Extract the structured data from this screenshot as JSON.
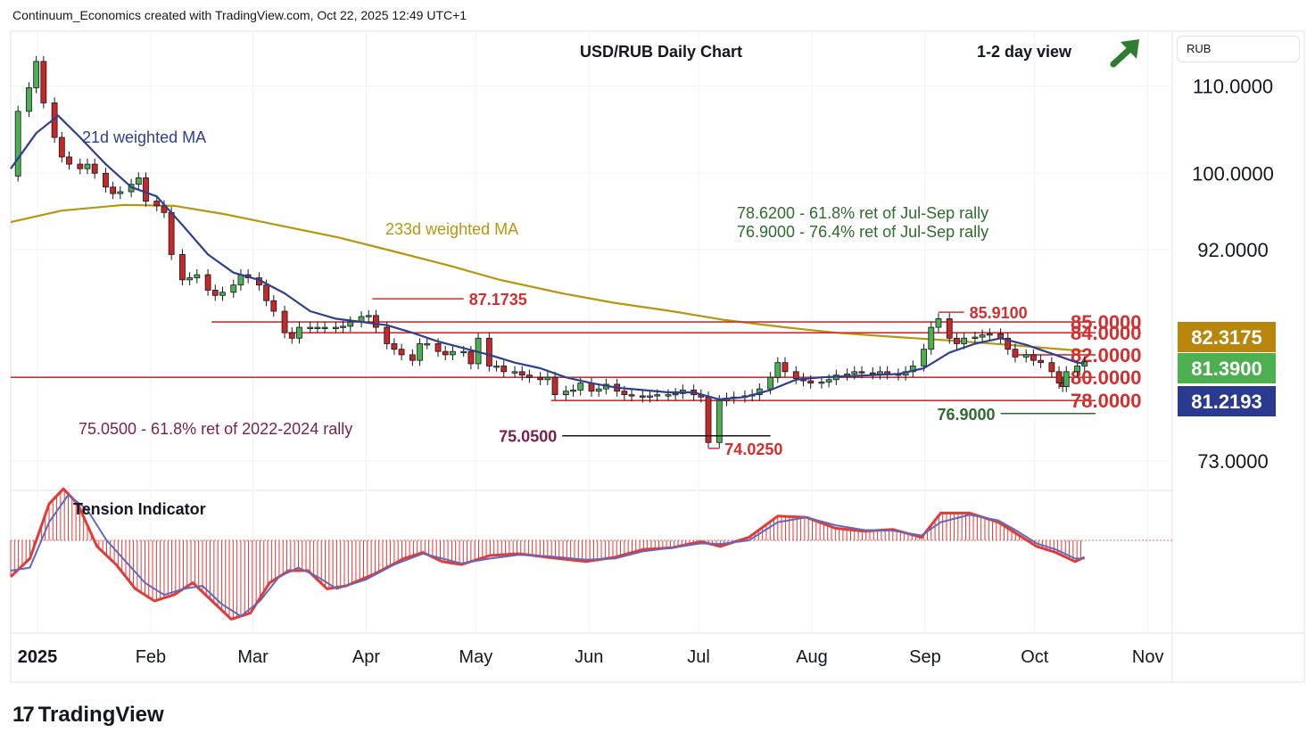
{
  "header": {
    "attribution": "Continuum_Economics created with TradingView.com, Oct 22, 2025 12:49 UTC+1"
  },
  "brand": {
    "logo_text": "17",
    "name": "TradingView"
  },
  "price_axis": {
    "currency": "RUB",
    "tick_labels": [
      "110.0000",
      "100.0000",
      "92.0000",
      "73.0000"
    ],
    "badges": [
      {
        "value": "82.3175",
        "color": "#b8860b"
      },
      {
        "value": "81.3900",
        "color": "#4caf50"
      },
      {
        "value": "81.2193",
        "color": "#2a3a8f"
      }
    ]
  },
  "time_axis": {
    "labels": [
      "2025",
      "Feb",
      "Mar",
      "Apr",
      "May",
      "Jun",
      "Jul",
      "Aug",
      "Sep",
      "Oct",
      "Nov"
    ]
  },
  "colors": {
    "candle_up": "#4caf50",
    "candle_down": "#c62828",
    "ma_short": "#2e3f8f",
    "ma_long": "#b8960c",
    "level_line": "#d32f2f",
    "text_green": "#2e6b2e",
    "text_maroon": "#7b1f4e",
    "tension_fast": "#e53935",
    "tension_slow": "#5c6bc0"
  },
  "chart_data": {
    "type": "line",
    "title": "USD/RUB Daily Chart",
    "view_label": "1-2 day view",
    "view_icon": "arrow-up-right-icon",
    "y_scale": "log",
    "ylim": [
      70.7,
      116.8
    ],
    "xlim": [
      "2025-01-01",
      "2025-11-15"
    ],
    "legend_labels": {
      "ma_short": "21d weighted MA",
      "ma_long": "233d weighted MA"
    },
    "ohlc_close": [
      [
        "2025-01-01",
        99.7
      ],
      [
        "2025-01-03",
        107.0
      ],
      [
        "2025-01-06",
        109.8
      ],
      [
        "2025-01-08",
        113.0
      ],
      [
        "2025-01-10",
        108.0
      ],
      [
        "2025-01-13",
        104.0
      ],
      [
        "2025-01-15",
        101.8
      ],
      [
        "2025-01-17",
        101.0
      ],
      [
        "2025-01-20",
        100.5
      ],
      [
        "2025-01-22",
        101.0
      ],
      [
        "2025-01-24",
        100.0
      ],
      [
        "2025-01-27",
        98.5
      ],
      [
        "2025-01-29",
        97.8
      ],
      [
        "2025-01-31",
        98.0
      ],
      [
        "2025-02-03",
        98.8
      ],
      [
        "2025-02-05",
        99.5
      ],
      [
        "2025-02-07",
        97.0
      ],
      [
        "2025-02-10",
        96.5
      ],
      [
        "2025-02-12",
        95.8
      ],
      [
        "2025-02-14",
        91.5
      ],
      [
        "2025-02-17",
        89.0
      ],
      [
        "2025-02-19",
        89.2
      ],
      [
        "2025-02-21",
        89.5
      ],
      [
        "2025-02-24",
        88.0
      ],
      [
        "2025-02-26",
        87.5
      ],
      [
        "2025-02-28",
        87.8
      ],
      [
        "2025-03-03",
        88.5
      ],
      [
        "2025-03-05",
        89.5
      ],
      [
        "2025-03-07",
        89.2
      ],
      [
        "2025-03-10",
        88.5
      ],
      [
        "2025-03-12",
        87.0
      ],
      [
        "2025-03-14",
        86.0
      ],
      [
        "2025-03-17",
        84.0
      ],
      [
        "2025-03-19",
        83.5
      ],
      [
        "2025-03-21",
        84.5
      ],
      [
        "2025-03-24",
        84.5
      ],
      [
        "2025-03-26",
        84.5
      ],
      [
        "2025-03-28",
        84.5
      ],
      [
        "2025-03-31",
        84.5
      ],
      [
        "2025-04-02",
        84.6
      ],
      [
        "2025-04-04",
        85.0
      ],
      [
        "2025-04-07",
        85.5
      ],
      [
        "2025-04-09",
        85.6
      ],
      [
        "2025-04-11",
        84.5
      ],
      [
        "2025-04-14",
        83.0
      ],
      [
        "2025-04-16",
        82.5
      ],
      [
        "2025-04-18",
        82.0
      ],
      [
        "2025-04-21",
        81.5
      ],
      [
        "2025-04-23",
        83.0
      ],
      [
        "2025-04-25",
        83.0
      ],
      [
        "2025-04-28",
        82.3
      ],
      [
        "2025-04-30",
        82.0
      ],
      [
        "2025-05-02",
        82.3
      ],
      [
        "2025-05-05",
        82.3
      ],
      [
        "2025-05-07",
        81.2
      ],
      [
        "2025-05-09",
        83.5
      ],
      [
        "2025-05-12",
        81.0
      ],
      [
        "2025-05-14",
        81.0
      ],
      [
        "2025-05-16",
        80.5
      ],
      [
        "2025-05-19",
        80.5
      ],
      [
        "2025-05-21",
        80.2
      ],
      [
        "2025-05-23",
        80.0
      ],
      [
        "2025-05-26",
        79.8
      ],
      [
        "2025-05-28",
        80.0
      ],
      [
        "2025-05-30",
        78.5
      ],
      [
        "2025-06-02",
        78.8
      ],
      [
        "2025-06-04",
        78.9
      ],
      [
        "2025-06-06",
        79.5
      ],
      [
        "2025-06-09",
        78.8
      ],
      [
        "2025-06-11",
        79.0
      ],
      [
        "2025-06-13",
        79.4
      ],
      [
        "2025-06-16",
        78.8
      ],
      [
        "2025-06-18",
        78.5
      ],
      [
        "2025-06-20",
        78.4
      ],
      [
        "2025-06-23",
        78.3
      ],
      [
        "2025-06-25",
        78.4
      ],
      [
        "2025-06-27",
        78.5
      ],
      [
        "2025-06-30",
        78.5
      ],
      [
        "2025-07-02",
        78.6
      ],
      [
        "2025-07-04",
        78.9
      ],
      [
        "2025-07-07",
        78.5
      ],
      [
        "2025-07-09",
        78.3
      ],
      [
        "2025-07-11",
        74.5
      ],
      [
        "2025-07-14",
        78.0
      ],
      [
        "2025-07-16",
        78.2
      ],
      [
        "2025-07-18",
        78.3
      ],
      [
        "2025-07-21",
        78.4
      ],
      [
        "2025-07-23",
        78.5
      ],
      [
        "2025-07-25",
        79.0
      ],
      [
        "2025-07-28",
        80.0
      ],
      [
        "2025-07-30",
        81.3
      ],
      [
        "2025-08-01",
        80.5
      ],
      [
        "2025-08-04",
        79.9
      ],
      [
        "2025-08-06",
        79.7
      ],
      [
        "2025-08-08",
        79.5
      ],
      [
        "2025-08-11",
        79.6
      ],
      [
        "2025-08-13",
        79.8
      ],
      [
        "2025-08-15",
        80.2
      ],
      [
        "2025-08-18",
        80.3
      ],
      [
        "2025-08-20",
        80.5
      ],
      [
        "2025-08-22",
        80.4
      ],
      [
        "2025-08-25",
        80.3
      ],
      [
        "2025-08-27",
        80.5
      ],
      [
        "2025-08-29",
        80.3
      ],
      [
        "2025-09-01",
        80.2
      ],
      [
        "2025-09-03",
        80.5
      ],
      [
        "2025-09-05",
        81.0
      ],
      [
        "2025-09-08",
        82.5
      ],
      [
        "2025-09-10",
        84.5
      ],
      [
        "2025-09-12",
        85.3
      ],
      [
        "2025-09-15",
        83.5
      ],
      [
        "2025-09-17",
        83.0
      ],
      [
        "2025-09-19",
        83.5
      ],
      [
        "2025-09-22",
        83.6
      ],
      [
        "2025-09-24",
        83.8
      ],
      [
        "2025-09-26",
        83.9
      ],
      [
        "2025-09-29",
        83.5
      ],
      [
        "2025-10-01",
        82.5
      ],
      [
        "2025-10-03",
        81.8
      ],
      [
        "2025-10-06",
        82.0
      ],
      [
        "2025-10-08",
        81.5
      ],
      [
        "2025-10-10",
        81.3
      ],
      [
        "2025-10-13",
        80.5
      ],
      [
        "2025-10-15",
        79.5
      ],
      [
        "2025-10-16",
        79.2
      ],
      [
        "2025-10-17",
        80.5
      ],
      [
        "2025-10-20",
        81.0
      ],
      [
        "2025-10-22",
        81.39
      ]
    ],
    "ma21_weighted": [
      [
        "2025-01-01",
        100.5
      ],
      [
        "2025-01-08",
        104.5
      ],
      [
        "2025-01-14",
        106.5
      ],
      [
        "2025-01-20",
        104.0
      ],
      [
        "2025-01-27",
        101.0
      ],
      [
        "2025-02-03",
        98.5
      ],
      [
        "2025-02-10",
        97.5
      ],
      [
        "2025-02-17",
        94.5
      ],
      [
        "2025-02-24",
        91.5
      ],
      [
        "2025-03-03",
        89.7
      ],
      [
        "2025-03-10",
        89.0
      ],
      [
        "2025-03-17",
        87.7
      ],
      [
        "2025-03-24",
        86.0
      ],
      [
        "2025-03-31",
        85.3
      ],
      [
        "2025-04-07",
        85.0
      ],
      [
        "2025-04-14",
        84.7
      ],
      [
        "2025-04-21",
        84.0
      ],
      [
        "2025-04-28",
        83.2
      ],
      [
        "2025-05-05",
        82.6
      ],
      [
        "2025-05-12",
        82.0
      ],
      [
        "2025-05-19",
        81.3
      ],
      [
        "2025-05-26",
        80.8
      ],
      [
        "2025-06-02",
        80.0
      ],
      [
        "2025-06-09",
        79.5
      ],
      [
        "2025-06-16",
        79.1
      ],
      [
        "2025-06-23",
        78.9
      ],
      [
        "2025-06-30",
        78.7
      ],
      [
        "2025-07-07",
        78.7
      ],
      [
        "2025-07-14",
        78.1
      ],
      [
        "2025-07-21",
        78.3
      ],
      [
        "2025-07-28",
        78.9
      ],
      [
        "2025-08-04",
        79.8
      ],
      [
        "2025-08-11",
        80.0
      ],
      [
        "2025-08-18",
        80.1
      ],
      [
        "2025-08-25",
        80.2
      ],
      [
        "2025-09-01",
        80.3
      ],
      [
        "2025-09-08",
        80.8
      ],
      [
        "2025-09-15",
        82.2
      ],
      [
        "2025-09-22",
        83.0
      ],
      [
        "2025-09-29",
        83.5
      ],
      [
        "2025-10-06",
        82.9
      ],
      [
        "2025-10-13",
        82.1
      ],
      [
        "2025-10-20",
        81.3
      ],
      [
        "2025-10-22",
        81.22
      ]
    ],
    "ma233_weighted": [
      [
        "2025-01-01",
        94.8
      ],
      [
        "2025-01-15",
        96.0
      ],
      [
        "2025-02-01",
        96.6
      ],
      [
        "2025-02-15",
        96.5
      ],
      [
        "2025-03-01",
        95.6
      ],
      [
        "2025-03-15",
        94.5
      ],
      [
        "2025-04-01",
        93.2
      ],
      [
        "2025-04-15",
        91.9
      ],
      [
        "2025-05-01",
        90.4
      ],
      [
        "2025-05-15",
        89.0
      ],
      [
        "2025-06-01",
        87.7
      ],
      [
        "2025-06-15",
        86.8
      ],
      [
        "2025-07-01",
        86.0
      ],
      [
        "2025-07-15",
        85.2
      ],
      [
        "2025-08-01",
        84.5
      ],
      [
        "2025-08-15",
        84.0
      ],
      [
        "2025-09-01",
        83.6
      ],
      [
        "2025-09-15",
        83.3
      ],
      [
        "2025-10-01",
        82.9
      ],
      [
        "2025-10-22",
        82.32
      ]
    ],
    "horizontal_levels": [
      {
        "value": 85.0,
        "label": "85.0000",
        "from": "2025-02-25",
        "to": "2025-10-25"
      },
      {
        "value": 84.0,
        "label": "84.0000",
        "from": "2025-03-18",
        "to": "2025-10-25"
      },
      {
        "value": 82.0,
        "label": "82.0000",
        "from": "2025-10-03",
        "to": "2025-10-25"
      },
      {
        "value": 80.0,
        "label": "80.0000",
        "from": "2025-01-01",
        "to": "2025-10-25"
      },
      {
        "value": 78.0,
        "label": "78.0000",
        "from": "2025-05-29",
        "to": "2025-10-25"
      }
    ],
    "marked_points": [
      {
        "label": "87.1735",
        "value": 87.1735,
        "date": "2025-04-10",
        "line_to": "2025-05-05"
      },
      {
        "label": "85.9100",
        "value": 85.91,
        "date": "2025-09-12",
        "line_to": "2025-09-19"
      },
      {
        "label": "75.0500",
        "value": 75.05,
        "date": "2025-06-01",
        "line_to": "2025-07-28"
      },
      {
        "label": "74.0250",
        "value": 74.025,
        "date": "2025-07-11",
        "line_to": "2025-07-14"
      },
      {
        "label": "76.9000",
        "value": 76.9,
        "date": "2025-09-29",
        "line_to": "2025-10-25"
      }
    ],
    "annotations": [
      "78.6200 - 61.8% ret of Jul-Sep rally",
      "76.9000 - 76.4% ret of Jul-Sep rally",
      "75.0500 - 61.8% ret of 2022-2024 rally"
    ],
    "indicator": {
      "title": "Tension Indicator",
      "fast": [
        [
          0,
          -0.6
        ],
        [
          0.02,
          -0.3
        ],
        [
          0.04,
          0.6
        ],
        [
          0.055,
          0.85
        ],
        [
          0.07,
          0.6
        ],
        [
          0.09,
          -0.1
        ],
        [
          0.11,
          -0.4
        ],
        [
          0.13,
          -0.8
        ],
        [
          0.15,
          -1.0
        ],
        [
          0.17,
          -0.9
        ],
        [
          0.19,
          -0.7
        ],
        [
          0.21,
          -1.0
        ],
        [
          0.23,
          -1.3
        ],
        [
          0.25,
          -1.2
        ],
        [
          0.27,
          -0.7
        ],
        [
          0.29,
          -0.5
        ],
        [
          0.31,
          -0.5
        ],
        [
          0.33,
          -0.8
        ],
        [
          0.35,
          -0.75
        ],
        [
          0.38,
          -0.55
        ],
        [
          0.41,
          -0.3
        ],
        [
          0.43,
          -0.2
        ],
        [
          0.45,
          -0.35
        ],
        [
          0.47,
          -0.4
        ],
        [
          0.5,
          -0.25
        ],
        [
          0.53,
          -0.22
        ],
        [
          0.56,
          -0.28
        ],
        [
          0.6,
          -0.35
        ],
        [
          0.63,
          -0.28
        ],
        [
          0.66,
          -0.15
        ],
        [
          0.69,
          -0.12
        ],
        [
          0.72,
          -0.02
        ],
        [
          0.74,
          -0.1
        ],
        [
          0.77,
          0.05
        ],
        [
          0.8,
          0.4
        ],
        [
          0.83,
          0.38
        ],
        [
          0.86,
          0.2
        ],
        [
          0.89,
          0.15
        ],
        [
          0.92,
          0.18
        ],
        [
          0.95,
          0.05
        ],
        [
          0.97,
          0.45
        ],
        [
          1.0,
          0.45
        ],
        [
          1.03,
          0.3
        ],
        [
          1.05,
          0.1
        ],
        [
          1.07,
          -0.1
        ],
        [
          1.09,
          -0.2
        ],
        [
          1.11,
          -0.35
        ],
        [
          1.12,
          -0.28
        ]
      ],
      "slow": [
        [
          0,
          -0.5
        ],
        [
          0.02,
          -0.45
        ],
        [
          0.04,
          0.3
        ],
        [
          0.06,
          0.75
        ],
        [
          0.08,
          0.5
        ],
        [
          0.1,
          0.0
        ],
        [
          0.12,
          -0.35
        ],
        [
          0.14,
          -0.7
        ],
        [
          0.16,
          -0.9
        ],
        [
          0.18,
          -0.8
        ],
        [
          0.2,
          -0.75
        ],
        [
          0.22,
          -1.05
        ],
        [
          0.24,
          -1.25
        ],
        [
          0.26,
          -1.0
        ],
        [
          0.28,
          -0.6
        ],
        [
          0.3,
          -0.45
        ],
        [
          0.32,
          -0.6
        ],
        [
          0.34,
          -0.8
        ],
        [
          0.37,
          -0.65
        ],
        [
          0.4,
          -0.4
        ],
        [
          0.43,
          -0.22
        ],
        [
          0.45,
          -0.3
        ],
        [
          0.47,
          -0.38
        ],
        [
          0.5,
          -0.3
        ],
        [
          0.53,
          -0.24
        ],
        [
          0.56,
          -0.26
        ],
        [
          0.6,
          -0.32
        ],
        [
          0.63,
          -0.3
        ],
        [
          0.66,
          -0.18
        ],
        [
          0.69,
          -0.12
        ],
        [
          0.72,
          -0.05
        ],
        [
          0.74,
          -0.06
        ],
        [
          0.77,
          0.0
        ],
        [
          0.8,
          0.3
        ],
        [
          0.83,
          0.38
        ],
        [
          0.86,
          0.25
        ],
        [
          0.89,
          0.17
        ],
        [
          0.92,
          0.16
        ],
        [
          0.95,
          0.08
        ],
        [
          0.97,
          0.3
        ],
        [
          1.0,
          0.42
        ],
        [
          1.03,
          0.33
        ],
        [
          1.05,
          0.15
        ],
        [
          1.07,
          -0.05
        ],
        [
          1.09,
          -0.15
        ],
        [
          1.11,
          -0.3
        ],
        [
          1.12,
          -0.3
        ]
      ]
    }
  }
}
